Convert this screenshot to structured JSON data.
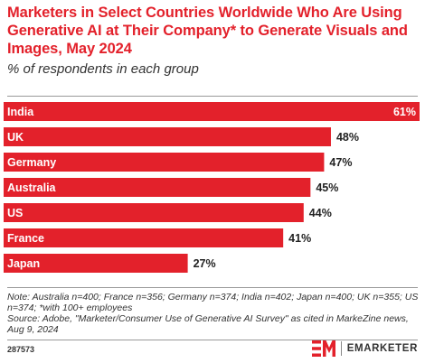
{
  "chart_data": {
    "type": "bar",
    "orientation": "horizontal",
    "title": "Marketers in Select Countries Worldwide Who Are Using Generative AI at Their Company* to Generate Visuals and Images, May 2024",
    "subtitle": "% of respondents in each group",
    "categories": [
      "India",
      "UK",
      "Germany",
      "Australia",
      "US",
      "France",
      "Japan"
    ],
    "values": [
      61,
      48,
      47,
      45,
      44,
      41,
      27
    ],
    "value_labels": [
      "61%",
      "48%",
      "47%",
      "45%",
      "44%",
      "41%",
      "27%"
    ],
    "xlim": [
      0,
      61
    ],
    "bar_color": "#e3212b",
    "grid": false,
    "legend": "none"
  },
  "note": "Note: Australia n=400; France n=356; Germany n=374; India n=402; Japan n=400; UK n=355; US n=374; *with 100+ employees",
  "source": "Source: Adobe, \"Marketer/Consumer Use of Generative AI Survey\" as cited in MarkeZine news, Aug 9, 2024",
  "footer": {
    "chart_id": "287573",
    "brand": "EMARKETER"
  },
  "colors": {
    "accent": "#e3212b",
    "text": "#222222"
  }
}
